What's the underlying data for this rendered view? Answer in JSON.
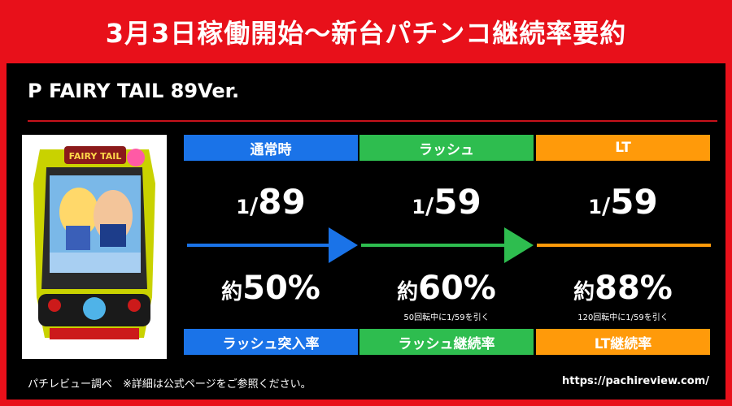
{
  "header": {
    "title": "3月3日稼働開始～新台パチンコ継続率要約"
  },
  "machine": {
    "name": "P FAIRY TAIL 89Ver."
  },
  "columns": [
    {
      "top_label": "通常時",
      "prob_num": "1",
      "prob_den": "89",
      "rate_prefix": "約",
      "rate": "50%",
      "note": "",
      "bottom_label": "ラッシュ突入率",
      "color": "#1a73e8"
    },
    {
      "top_label": "ラッシュ",
      "prob_num": "1",
      "prob_den": "59",
      "rate_prefix": "約",
      "rate": "60%",
      "note": "50回転中に1/59を引く",
      "bottom_label": "ラッシュ継続率",
      "color": "#2ebd4f"
    },
    {
      "top_label": "LT",
      "prob_num": "1",
      "prob_den": "59",
      "rate_prefix": "約",
      "rate": "88%",
      "note": "120回転中に1/59を引く",
      "bottom_label": "LT継続率",
      "color": "#ff9a0a"
    }
  ],
  "footer": {
    "source": "パチレビュー調べ　※詳細は公式ページをご参照ください。",
    "url": "https://pachireview.com/"
  },
  "colors": {
    "accent": "#e8101a",
    "background": "#000000"
  },
  "image": {
    "logo_text": "FAIRY TAIL"
  }
}
